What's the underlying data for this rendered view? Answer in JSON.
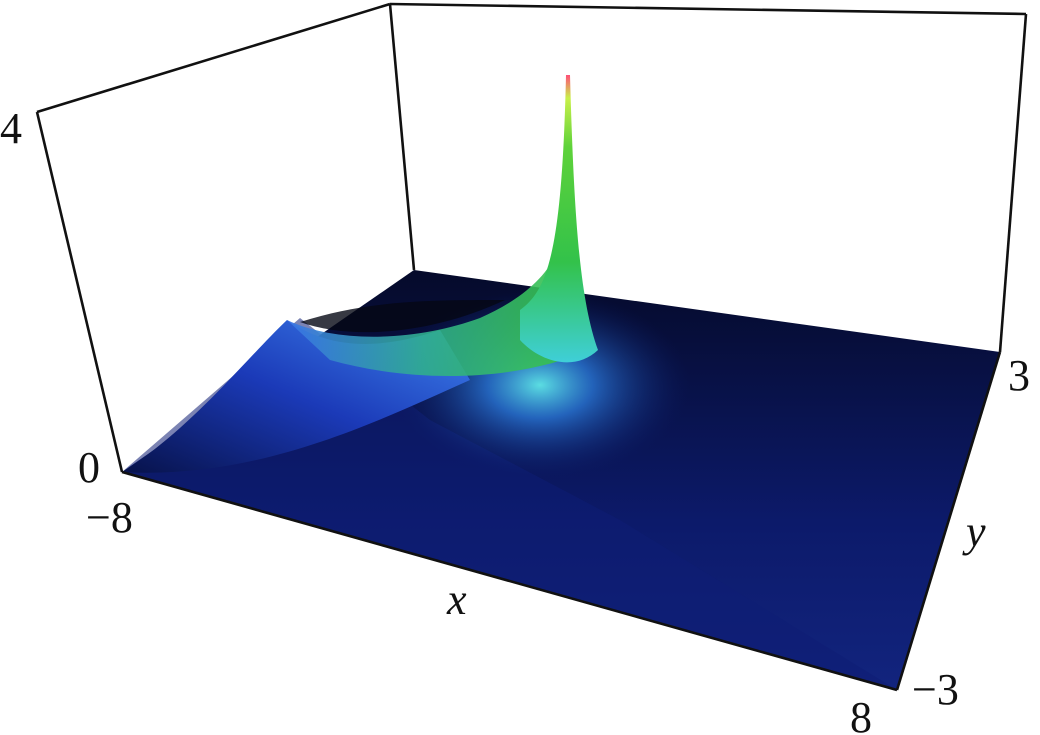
{
  "chart_data": {
    "type": "surface3d",
    "title": "",
    "xlabel": "x",
    "ylabel": "y",
    "zlabel": "",
    "xlim": [
      -8,
      8
    ],
    "ylim": [
      -3,
      3
    ],
    "zlim": [
      0,
      4
    ],
    "x_ticks": [
      "−8",
      "8"
    ],
    "y_ticks": [
      "−3",
      "3"
    ],
    "z_ticks": [
      "0",
      "4"
    ],
    "features": [
      {
        "kind": "sharp-peak",
        "x": 0,
        "y": 3,
        "z": 4
      },
      {
        "kind": "ridge-left-edge",
        "x": -8,
        "y_range": [
          -3,
          3
        ],
        "z_max": 1.4
      },
      {
        "kind": "baseline",
        "z": 0
      }
    ],
    "colormap": [
      "#000515",
      "#0a1c6a",
      "#2c5de0",
      "#4fd6e6",
      "#3ac83a",
      "#a8e82a",
      "#ff5577"
    ],
    "grid": false,
    "legend": "none"
  }
}
